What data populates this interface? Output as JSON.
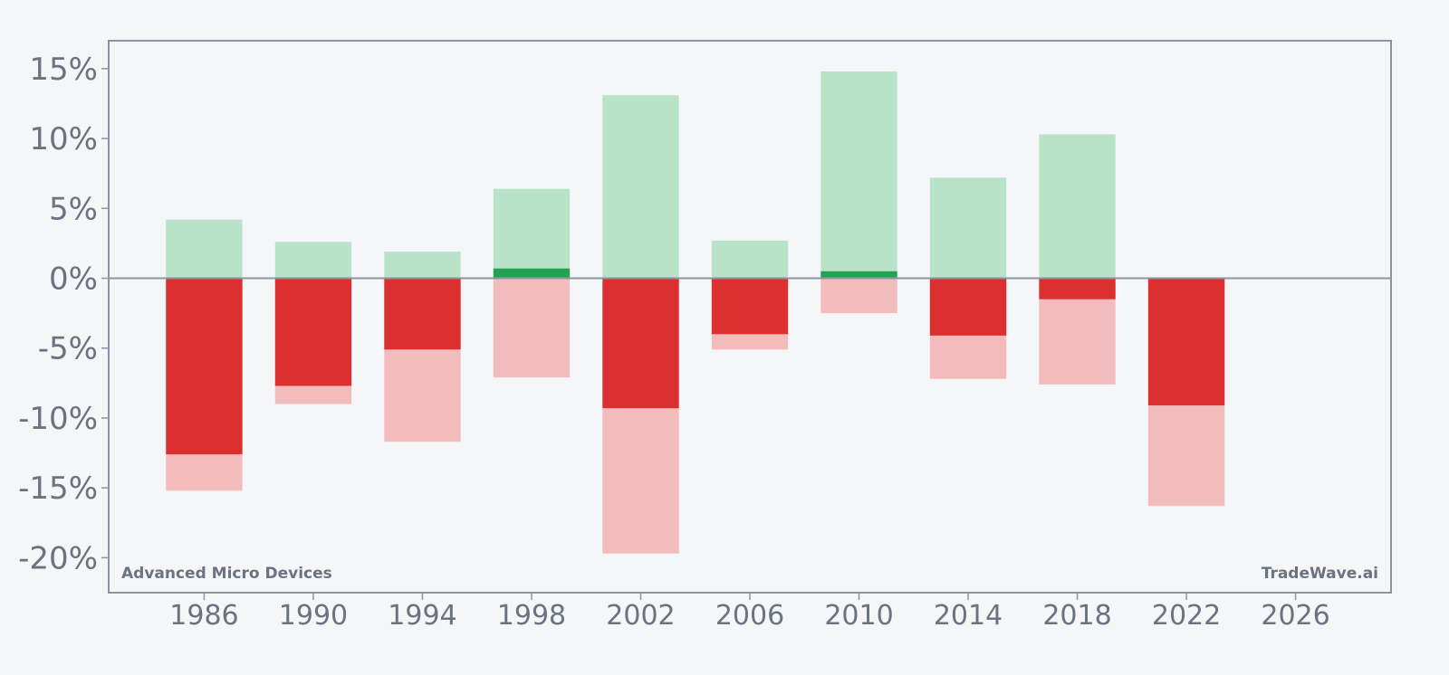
{
  "chart_data": {
    "type": "bar",
    "title": "",
    "xlabel": "",
    "ylabel": "",
    "x": [
      1986,
      1990,
      1994,
      1998,
      2002,
      2006,
      2010,
      2014,
      2018,
      2022
    ],
    "xlim": [
      1982.5,
      2029.5
    ],
    "ylim": [
      -22.5,
      17.0
    ],
    "x_ticks": [
      1986,
      1990,
      1994,
      1998,
      2002,
      2006,
      2010,
      2014,
      2018,
      2022,
      2026
    ],
    "x_tick_labels": [
      "1986",
      "1990",
      "1994",
      "1998",
      "2002",
      "2006",
      "2010",
      "2014",
      "2018",
      "2022",
      "2026"
    ],
    "y_ticks": [
      15,
      10,
      5,
      0,
      -5,
      -10,
      -15,
      -20
    ],
    "y_tick_labels": [
      "15%",
      "10%",
      "5%",
      "0%",
      "-5%",
      "-10%",
      "-15%",
      "-20%"
    ],
    "grid": false,
    "series": [
      {
        "role": "max_gain",
        "values": [
          4.2,
          2.6,
          1.9,
          6.4,
          13.1,
          2.7,
          14.8,
          7.2,
          10.3,
          0.0
        ]
      },
      {
        "role": "net_gain",
        "values": [
          0,
          0,
          0,
          0.7,
          0,
          0,
          0.5,
          0,
          0,
          0
        ]
      },
      {
        "role": "net_loss",
        "values": [
          -12.6,
          -7.7,
          -5.1,
          0,
          -9.3,
          -4.0,
          0,
          -4.1,
          -1.5,
          -9.1
        ]
      },
      {
        "role": "max_loss",
        "values": [
          -15.2,
          -9.0,
          -11.7,
          -7.1,
          -19.7,
          -5.1,
          -2.5,
          -7.2,
          -7.6,
          -16.3
        ]
      }
    ],
    "colors": {
      "max_gain": "#b8e3c8",
      "net_gain": "#22a352",
      "net_loss": "#dc3030",
      "max_loss": "#f3bcbc",
      "axis": "#8e94a3",
      "text": "#6b7280",
      "background": "#f4f6f8"
    },
    "annotations": {
      "bottom_left": "Advanced Micro Devices",
      "bottom_right": "TradeWave.ai"
    }
  }
}
